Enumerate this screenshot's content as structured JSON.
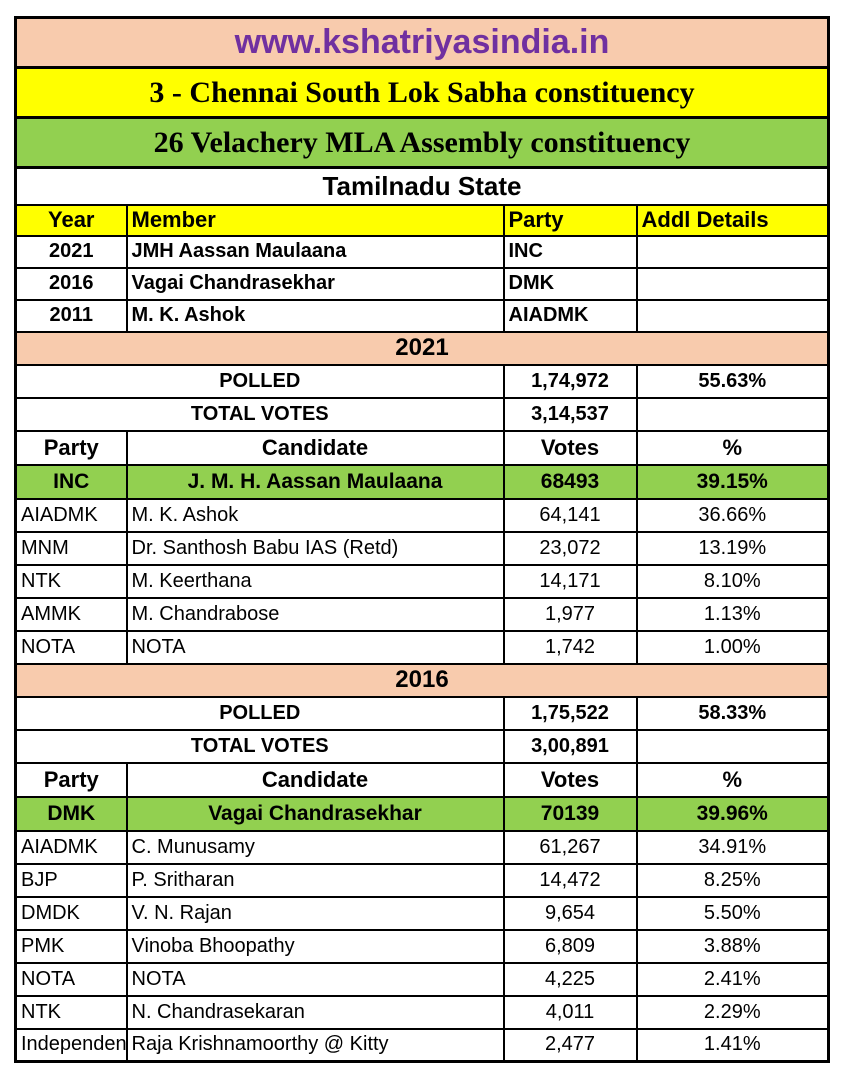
{
  "website": "www.kshatriyasindia.in",
  "constituency": {
    "lok_sabha": "3 - Chennai South Lok Sabha constituency",
    "assembly": "26 Velachery MLA Assembly constituency",
    "state": "Tamilnadu State"
  },
  "members_table": {
    "headers": {
      "year": "Year",
      "member": "Member",
      "party": "Party",
      "addl": "Addl Details"
    },
    "rows": [
      {
        "year": "2021",
        "member": "JMH Aassan Maulaana",
        "party": "INC",
        "addl": ""
      },
      {
        "year": "2016",
        "member": "Vagai Chandrasekhar",
        "party": "DMK",
        "addl": ""
      },
      {
        "year": "2011",
        "member": "M. K. Ashok",
        "party": "AIADMK",
        "addl": ""
      }
    ]
  },
  "elections": [
    {
      "year": "2021",
      "polled_label": "POLLED",
      "polled_value": "1,74,972",
      "polled_pct": "55.63%",
      "total_label": "TOTAL VOTES",
      "total_value": "3,14,537",
      "headers": {
        "party": "Party",
        "candidate": "Candidate",
        "votes": "Votes",
        "pct": "%"
      },
      "winner": {
        "party": "INC",
        "candidate": "J. M. H. Aassan Maulaana",
        "votes": "68493",
        "pct": "39.15%"
      },
      "rows": [
        {
          "party": "AIADMK",
          "candidate": "M. K. Ashok",
          "votes": "64,141",
          "pct": "36.66%"
        },
        {
          "party": "MNM",
          "candidate": "Dr. Santhosh Babu IAS (Retd)",
          "votes": "23,072",
          "pct": "13.19%"
        },
        {
          "party": "NTK",
          "candidate": "M. Keerthana",
          "votes": "14,171",
          "pct": "8.10%"
        },
        {
          "party": "AMMK",
          "candidate": "M. Chandrabose",
          "votes": "1,977",
          "pct": "1.13%"
        },
        {
          "party": "NOTA",
          "candidate": "NOTA",
          "votes": "1,742",
          "pct": "1.00%"
        }
      ]
    },
    {
      "year": "2016",
      "polled_label": "POLLED",
      "polled_value": "1,75,522",
      "polled_pct": "58.33%",
      "total_label": "TOTAL VOTES",
      "total_value": "3,00,891",
      "headers": {
        "party": "Party",
        "candidate": "Candidate",
        "votes": "Votes",
        "pct": "%"
      },
      "winner": {
        "party": "DMK",
        "candidate": "Vagai Chandrasekhar",
        "votes": "70139",
        "pct": "39.96%"
      },
      "rows": [
        {
          "party": "AIADMK",
          "candidate": "C. Munusamy",
          "votes": "61,267",
          "pct": "34.91%"
        },
        {
          "party": "BJP",
          "candidate": "P. Sritharan",
          "votes": "14,472",
          "pct": "8.25%"
        },
        {
          "party": "DMDK",
          "candidate": "V. N. Rajan",
          "votes": "9,654",
          "pct": "5.50%"
        },
        {
          "party": "PMK",
          "candidate": "Vinoba Bhoopathy",
          "votes": "6,809",
          "pct": "3.88%"
        },
        {
          "party": "NOTA",
          "candidate": "NOTA",
          "votes": "4,225",
          "pct": "2.41%"
        },
        {
          "party": "NTK",
          "candidate": "N. Chandrasekaran",
          "votes": "4,011",
          "pct": "2.29%"
        },
        {
          "party": "Independent",
          "candidate": "Raja Krishnamoorthy @ Kitty",
          "votes": "2,477",
          "pct": "1.41%"
        }
      ]
    }
  ],
  "colors": {
    "band_peach": "#F8CBAD",
    "band_yellow": "#FFFF00",
    "band_green": "#92D050",
    "winner_row_green": "#92D050",
    "title_purple": "#7030A0",
    "border_black": "#000000",
    "text_black": "#000000"
  }
}
